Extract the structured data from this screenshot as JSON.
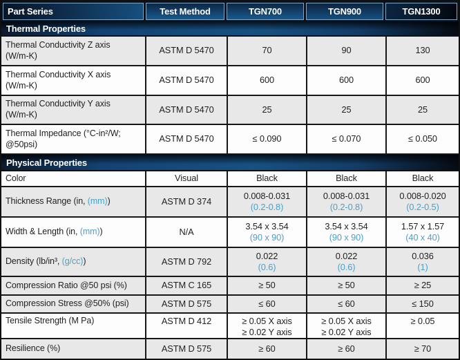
{
  "colors": {
    "accent_blue_text": "#4BA0C8",
    "band_blue": "#175181",
    "band_dark": "#060B12",
    "row_gray": "#E8E8E8",
    "row_white": "#FDFDFD",
    "grid_black": "#161616",
    "header_text": "#FFFFFF",
    "body_text": "#1F1F1F"
  },
  "header": {
    "columns": [
      "Part Series",
      "Test Method",
      "TGN700",
      "TGN900",
      "TGN1300"
    ]
  },
  "sections": [
    {
      "title": "Thermal Properties",
      "rows": [
        {
          "shade": "gray",
          "label": [
            [
              {
                "text": "Thermal Conductivity Z axis"
              }
            ],
            [
              {
                "text": "(W/m-K)"
              }
            ]
          ],
          "method": "ASTM D 5470",
          "values": [
            [
              {
                "text": "70"
              }
            ],
            [
              {
                "text": "90"
              }
            ],
            [
              {
                "text": "130"
              }
            ]
          ]
        },
        {
          "shade": "white",
          "label": [
            [
              {
                "text": "Thermal Conductivity X axis"
              }
            ],
            [
              {
                "text": "(W/m-K)"
              }
            ]
          ],
          "method": "ASTM D 5470",
          "values": [
            [
              {
                "text": "600"
              }
            ],
            [
              {
                "text": "600"
              }
            ],
            [
              {
                "text": "600"
              }
            ]
          ]
        },
        {
          "shade": "gray",
          "label": [
            [
              {
                "text": "Thermal Conductivity Y axis"
              }
            ],
            [
              {
                "text": "(W/m-K)"
              }
            ]
          ],
          "method": "ASTM D 5470",
          "values": [
            [
              {
                "text": "25"
              }
            ],
            [
              {
                "text": "25"
              }
            ],
            [
              {
                "text": "25"
              }
            ]
          ]
        },
        {
          "shade": "white",
          "label": [
            [
              {
                "text": "Thermal Impedance (°C-in²/W;"
              }
            ],
            [
              {
                "text": "@50psi)"
              }
            ]
          ],
          "method": "ASTM D 5470",
          "values": [
            [
              {
                "text": "≤ 0.090"
              }
            ],
            [
              {
                "text": "≤ 0.070"
              }
            ],
            [
              {
                "text": "≤ 0.050"
              }
            ]
          ]
        }
      ]
    },
    {
      "title": "Physical Properties",
      "rows": [
        {
          "shade": "white",
          "label": [
            [
              {
                "text": "Color"
              }
            ]
          ],
          "method": "Visual",
          "values": [
            [
              {
                "text": "Black"
              }
            ],
            [
              {
                "text": "Black"
              }
            ],
            [
              {
                "text": "Black"
              }
            ]
          ]
        },
        {
          "shade": "gray",
          "label": [
            [
              {
                "text": "Thickness Range (in, "
              },
              {
                "text": "(mm)",
                "accent": true
              },
              {
                "text": ")"
              }
            ]
          ],
          "method": "ASTM D 374",
          "values": [
            [
              {
                "text": "0.008-0.031"
              },
              {
                "text": "(0.2-0.8)",
                "accent": true
              }
            ],
            [
              {
                "text": "0.008-0.031"
              },
              {
                "text": "(0.2-0.8)",
                "accent": true
              }
            ],
            [
              {
                "text": "0.008-0.020"
              },
              {
                "text": "(0.2-0.5)",
                "accent": true
              }
            ]
          ]
        },
        {
          "shade": "white",
          "label": [
            [
              {
                "text": "Width & Length (in, "
              },
              {
                "text": "(mm)",
                "accent": true
              },
              {
                "text": ")"
              }
            ]
          ],
          "method": "N/A",
          "values": [
            [
              {
                "text": "3.54 x 3.54"
              },
              {
                "text": "(90 x 90)",
                "accent": true
              }
            ],
            [
              {
                "text": "3.54 x 3.54"
              },
              {
                "text": "(90 x 90)",
                "accent": true
              }
            ],
            [
              {
                "text": "1.57 x 1.57"
              },
              {
                "text": "(40 x 40)",
                "accent": true
              }
            ]
          ]
        },
        {
          "shade": "gray",
          "label": [
            [
              {
                "text": "Density (lb/in³, "
              },
              {
                "text": "(g/cc)",
                "accent": true
              },
              {
                "text": ")"
              }
            ]
          ],
          "method": "ASTM D 792",
          "values": [
            [
              {
                "text": "0.022"
              },
              {
                "text": "(0.6)",
                "accent": true
              }
            ],
            [
              {
                "text": "0.022"
              },
              {
                "text": "(0.6)",
                "accent": true
              }
            ],
            [
              {
                "text": "0.036"
              },
              {
                "text": "(1)",
                "accent": true
              }
            ]
          ]
        },
        {
          "shade": "gray",
          "label": [
            [
              {
                "text": "Compression Ratio @50 psi (%)"
              }
            ]
          ],
          "method": "ASTM C 165",
          "values": [
            [
              {
                "text": "≥ 50"
              }
            ],
            [
              {
                "text": "≥ 50"
              }
            ],
            [
              {
                "text": "≥ 25"
              }
            ]
          ]
        },
        {
          "shade": "gray",
          "label": [
            [
              {
                "text": "Compression Stress @50% (psi)"
              }
            ]
          ],
          "method": "ASTM D 575",
          "values": [
            [
              {
                "text": "≤ 60"
              }
            ],
            [
              {
                "text": "≤ 60"
              }
            ],
            [
              {
                "text": "≤ 150"
              }
            ]
          ]
        },
        {
          "shade": "white",
          "valign": "top",
          "label": [
            [
              {
                "text": "Tensile Strength (M Pa)"
              }
            ]
          ],
          "method": "ASTM D 412",
          "values": [
            [
              {
                "text": "≥ 0.05 X axis"
              },
              {
                "text": "≥ 0.02 Y axis"
              }
            ],
            [
              {
                "text": "≥ 0.05 X axis"
              },
              {
                "text": "≥ 0.02 Y axis"
              }
            ],
            [
              {
                "text": "≥ 0.05"
              }
            ]
          ]
        },
        {
          "shade": "gray",
          "label": [
            [
              {
                "text": "Resilience (%)"
              }
            ]
          ],
          "method": "ASTM D 575",
          "values": [
            [
              {
                "text": "≥ 60"
              }
            ],
            [
              {
                "text": "≥ 60"
              }
            ],
            [
              {
                "text": "≥ 70"
              }
            ]
          ]
        }
      ]
    }
  ]
}
